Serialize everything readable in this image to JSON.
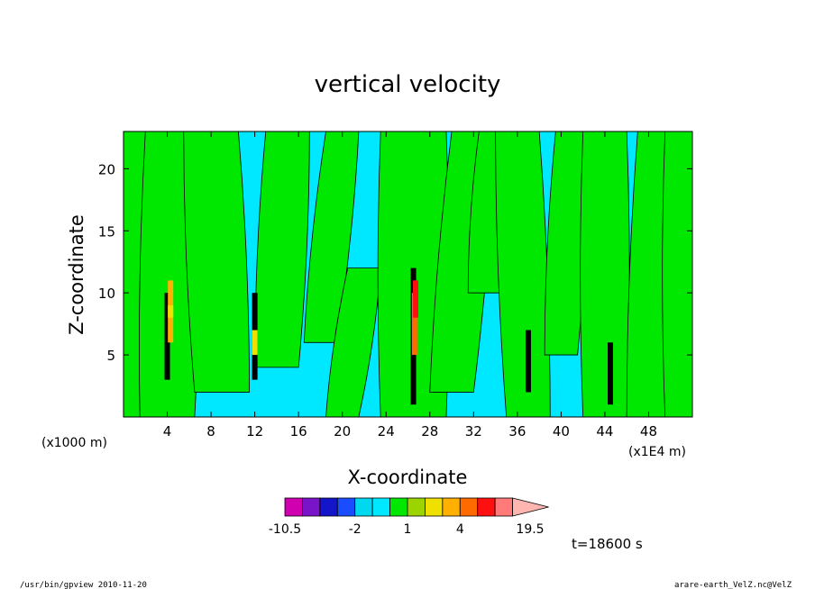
{
  "chart_data": {
    "type": "heatmap",
    "title": "vertical velocity",
    "xlabel": "X-coordinate",
    "ylabel": "Z-coordinate",
    "x_unit_left": "(x1000 m)",
    "x_unit_right": "(x1E4 m)",
    "xlim": [
      0,
      52
    ],
    "ylim": [
      0,
      23
    ],
    "x_ticks": [
      "4",
      "8",
      "12",
      "16",
      "20",
      "24",
      "28",
      "32",
      "36",
      "40",
      "44",
      "48"
    ],
    "x_tick_values": [
      4,
      8,
      12,
      16,
      20,
      24,
      28,
      32,
      36,
      40,
      44,
      48
    ],
    "y_ticks": [
      "5",
      "10",
      "15",
      "20"
    ],
    "y_tick_values": [
      5,
      10,
      15,
      20
    ],
    "colorbar": {
      "levels": [
        -10.5,
        -7.5,
        -4.5,
        -3,
        -2,
        -1,
        0,
        1,
        2,
        3,
        4,
        7,
        10.5,
        14.5,
        19.5
      ],
      "labels": [
        "-10.5",
        "-2",
        "1",
        "4",
        "19.5"
      ],
      "label_values": [
        -10.5,
        -2,
        1,
        4,
        19.5
      ],
      "colors": [
        "#d000b0",
        "#7a14c8",
        "#1414c8",
        "#1a4dff",
        "#00d8f0",
        "#00e8ff",
        "#00e800",
        "#9bd400",
        "#f0e000",
        "#ffb000",
        "#ff6a00",
        "#ff1010",
        "#ff7a78",
        "#ffb6b0"
      ]
    },
    "time_label": "t=18600 s",
    "background_color": "#00e8ff",
    "positive_color": "#00e800"
  },
  "footer": {
    "left": "/usr/bin/gpview   2010-11-20",
    "right": "arare-earth_VelZ.nc@VelZ"
  }
}
